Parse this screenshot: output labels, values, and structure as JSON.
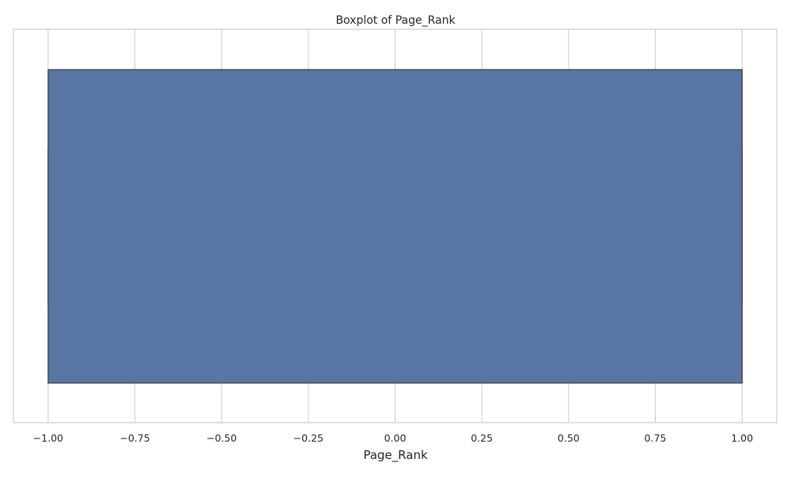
{
  "chart_data": {
    "type": "boxplot",
    "title": "Boxplot of Page_Rank",
    "xlabel": "Page_Rank",
    "ylabel": "",
    "orientation": "horizontal",
    "xlim": [
      -1.1,
      1.1
    ],
    "xticks": [
      -1.0,
      -0.75,
      -0.5,
      -0.25,
      0.0,
      0.25,
      0.5,
      0.75,
      1.0
    ],
    "xtick_labels": [
      "−1.00",
      "−0.75",
      "−0.50",
      "−0.25",
      "0.00",
      "0.25",
      "0.50",
      "0.75",
      "1.00"
    ],
    "grid": true,
    "series": [
      {
        "whisker_low": -1.0,
        "q1": -1.0,
        "median": 1.0,
        "q3": 1.0,
        "whisker_high": 1.0
      }
    ],
    "colors": {
      "box_fill": "#5975a4",
      "box_edge": "#3f3f3f",
      "grid": "#cccccc",
      "axes_edge": "#cccccc"
    }
  }
}
